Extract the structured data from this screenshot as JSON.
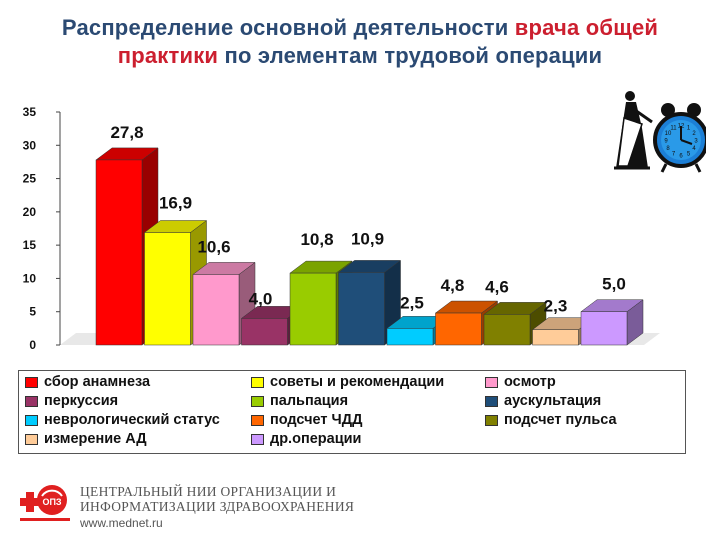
{
  "title": {
    "part1": "Распределение основной деятельности ",
    "highlight1": "врача общей",
    "highlight2": "практики",
    "part2": " по элементам трудовой операции"
  },
  "chart_data": {
    "type": "bar",
    "title": "Распределение основной деятельности врача общей практики по элементам трудовой операции",
    "categories": [
      "сбор анамнеза",
      "советы и рекомендации",
      "осмотр",
      "перкуссия",
      "пальпация",
      "аускультация",
      "неврологический статус",
      "подсчет ЧДД",
      "подсчет пульса",
      "измерение АД",
      "др.операции"
    ],
    "values": [
      27.8,
      16.9,
      10.6,
      4.0,
      10.8,
      10.9,
      2.5,
      4.8,
      4.6,
      2.3,
      5.0
    ],
    "labels": [
      "27,8",
      "16,9",
      "10,6",
      "4,0",
      "10,8",
      "10,9",
      "2,5",
      "4,8",
      "4,6",
      "2,3",
      "5,0"
    ],
    "colors": [
      "#ff0000",
      "#ffff00",
      "#ff99cc",
      "#993366",
      "#99cc00",
      "#1f4e79",
      "#00ccff",
      "#ff6600",
      "#808000",
      "#ffcc99",
      "#cc99ff"
    ],
    "yticks": [
      "0",
      "5",
      "10",
      "15",
      "20",
      "25",
      "30",
      "35"
    ],
    "ylim": [
      0,
      35
    ],
    "xlabel": "",
    "ylabel": "",
    "legend_position": "bottom"
  },
  "legend": [
    [
      "сбор анамнеза",
      "советы и рекомендации",
      "осмотр"
    ],
    [
      "перкуссия",
      "пальпация",
      "аускультация"
    ],
    [
      "неврологический статус",
      "подсчет ЧДД",
      "подсчет пульса"
    ],
    [
      "измерение АД",
      "др.операции"
    ]
  ],
  "footer": {
    "logo_text": "ОПЗ",
    "org_line1": "ЦЕНТРАЛЬНЫЙ НИИ ОРГАНИЗАЦИИ И",
    "org_line2": "ИНФОРМАТИЗАЦИИ ЗДРАВООХРАНЕНИЯ",
    "url": "www.mednet.ru"
  },
  "clock": {
    "numerals": [
      "12",
      "1",
      "2",
      "3",
      "4",
      "5",
      "6",
      "7",
      "8",
      "9",
      "10",
      "11"
    ]
  }
}
